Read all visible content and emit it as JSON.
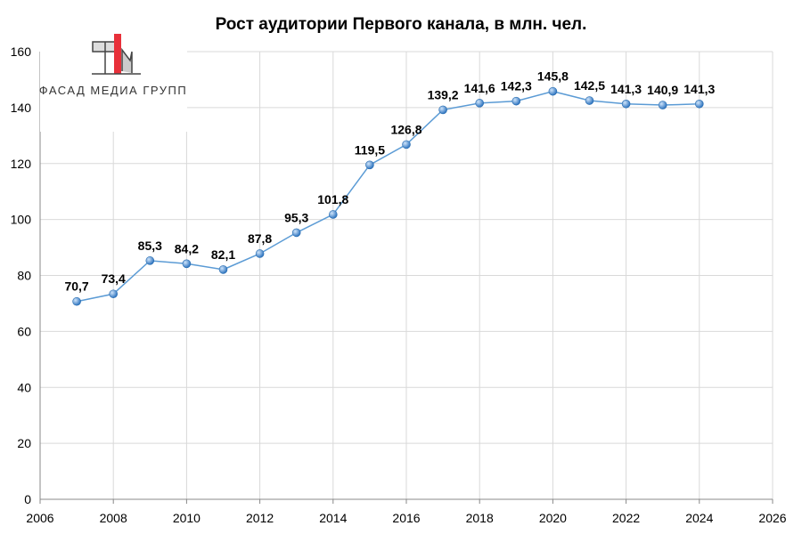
{
  "chart_data": {
    "type": "line",
    "title": "Рост аудитории Первого канала, в млн. чел.",
    "xlabel": "",
    "ylabel": "",
    "xlim": [
      2006,
      2026
    ],
    "ylim": [
      0,
      160
    ],
    "x_ticks": [
      2006,
      2008,
      2010,
      2012,
      2014,
      2016,
      2018,
      2020,
      2022,
      2024,
      2026
    ],
    "y_ticks": [
      0,
      20,
      40,
      60,
      80,
      100,
      120,
      140,
      160
    ],
    "grid": true,
    "legend": "none",
    "series": [
      {
        "color": "#5b9bd5",
        "x": [
          2007,
          2008,
          2009,
          2010,
          2011,
          2012,
          2013,
          2014,
          2015,
          2016,
          2017,
          2018,
          2019,
          2020,
          2021,
          2022,
          2023,
          2024
        ],
        "values": [
          70.7,
          73.4,
          85.3,
          84.2,
          82.1,
          87.8,
          95.3,
          101.8,
          119.5,
          126.8,
          139.2,
          141.6,
          142.3,
          145.8,
          142.5,
          141.3,
          140.9,
          141.3
        ],
        "labels": [
          "70,7",
          "73,4",
          "85,3",
          "84,2",
          "82,1",
          "87,8",
          "95,3",
          "101,8",
          "119,5",
          "126,8",
          "139,2",
          "141,6",
          "142,3",
          "145,8",
          "142,5",
          "141,3",
          "140,9",
          "141,3"
        ]
      }
    ]
  },
  "logo": {
    "text": "ФАСАД МЕДИА ГРУПП",
    "accent": "#e8303a"
  }
}
